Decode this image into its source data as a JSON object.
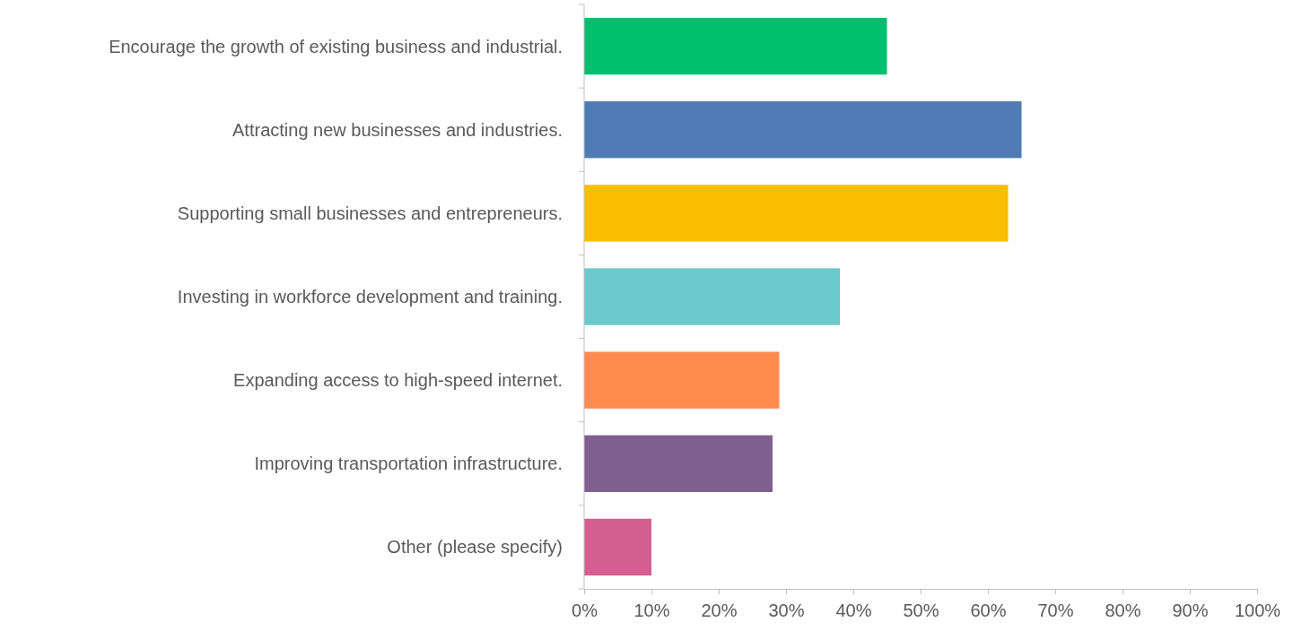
{
  "chart_data": {
    "type": "bar",
    "orientation": "horizontal",
    "categories": [
      "Encourage the growth of existing business and industrial.",
      "Attracting new businesses and industries.",
      "Supporting small businesses and entrepreneurs.",
      "Investing in workforce development and training.",
      "Expanding access to high-speed internet.",
      "Improving transportation infrastructure.",
      "Other (please specify)"
    ],
    "values": [
      45,
      65,
      63,
      38,
      29,
      28,
      10
    ],
    "colors": [
      "#00bf6f",
      "#507cb6",
      "#f9be00",
      "#6bc8cd",
      "#ff8b4f",
      "#7f5f90",
      "#d25f90"
    ],
    "xlim": [
      0,
      100
    ],
    "xticks": [
      {
        "value": 0,
        "label": "0%"
      },
      {
        "value": 10,
        "label": "10%"
      },
      {
        "value": 20,
        "label": "20%"
      },
      {
        "value": 30,
        "label": "30%"
      },
      {
        "value": 40,
        "label": "40%"
      },
      {
        "value": 50,
        "label": "50%"
      },
      {
        "value": 60,
        "label": "60%"
      },
      {
        "value": 70,
        "label": "70%"
      },
      {
        "value": 80,
        "label": "80%"
      },
      {
        "value": 90,
        "label": "90%"
      },
      {
        "value": 100,
        "label": "100%"
      }
    ],
    "grid": false
  }
}
